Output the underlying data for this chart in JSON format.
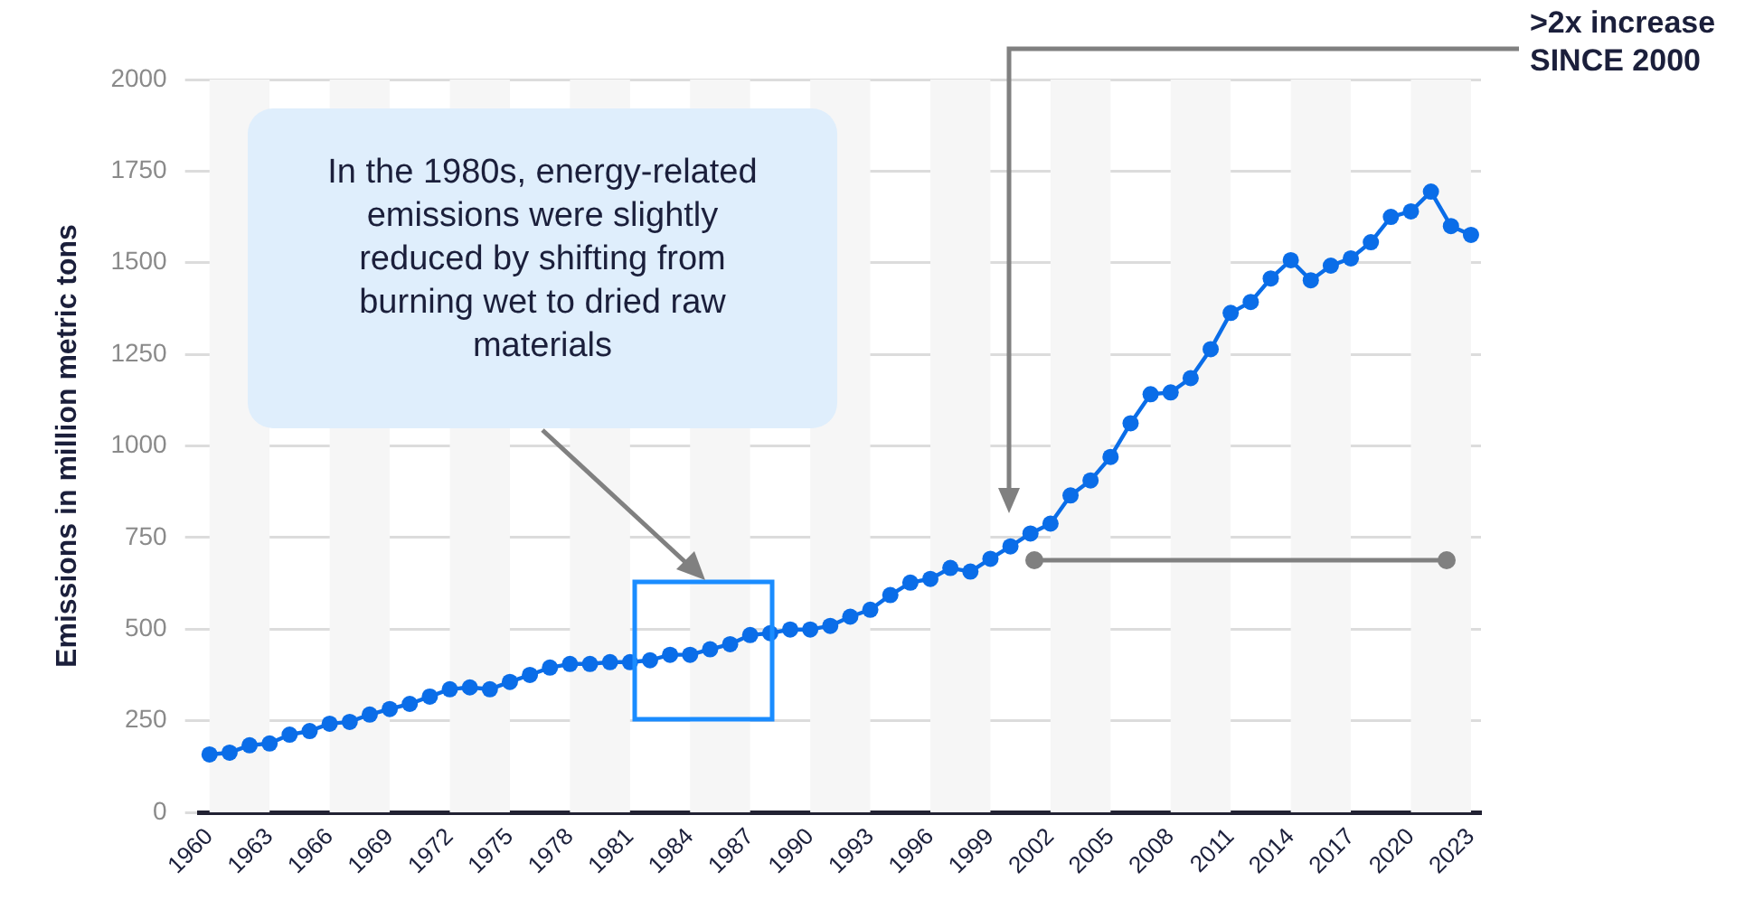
{
  "chart_data": {
    "type": "line",
    "ylabel": "Emissions in million metric tons",
    "x": [
      1960,
      1961,
      1962,
      1963,
      1964,
      1965,
      1966,
      1967,
      1968,
      1969,
      1970,
      1971,
      1972,
      1973,
      1974,
      1975,
      1976,
      1977,
      1978,
      1979,
      1980,
      1981,
      1982,
      1983,
      1984,
      1985,
      1986,
      1987,
      1988,
      1989,
      1990,
      1991,
      1992,
      1993,
      1994,
      1995,
      1996,
      1997,
      1998,
      1999,
      2000,
      2001,
      2002,
      2003,
      2004,
      2005,
      2006,
      2007,
      2008,
      2009,
      2010,
      2011,
      2012,
      2013,
      2014,
      2015,
      2016,
      2017,
      2018,
      2019,
      2020,
      2021,
      2022,
      2023
    ],
    "series": [
      {
        "color": "#0a6de8",
        "values": [
          158,
          163,
          183,
          188,
          212,
          222,
          242,
          247,
          267,
          282,
          296,
          316,
          336,
          341,
          336,
          356,
          375,
          395,
          405,
          405,
          410,
          410,
          415,
          430,
          430,
          445,
          459,
          484,
          489,
          499,
          499,
          509,
          534,
          553,
          593,
          627,
          637,
          667,
          657,
          692,
          726,
          761,
          788,
          865,
          906,
          970,
          1062,
          1141,
          1146,
          1185,
          1264,
          1363,
          1393,
          1457,
          1507,
          1452,
          1492,
          1512,
          1556,
          1625,
          1640,
          1694,
          1600,
          1576
        ]
      }
    ],
    "xlim": [
      1959.5,
      2023.5
    ],
    "xticks": [
      1960,
      1963,
      1966,
      1969,
      1972,
      1975,
      1978,
      1981,
      1984,
      1987,
      1990,
      1993,
      1996,
      1999,
      2002,
      2005,
      2008,
      2011,
      2014,
      2017,
      2020,
      2023
    ],
    "ylim": [
      0,
      2000
    ],
    "yticks": [
      0,
      250,
      500,
      750,
      1000,
      1250,
      1500,
      1750,
      2000
    ],
    "grid": "y",
    "marker": "circle",
    "line_style": "solid",
    "legend": false,
    "bands": [
      {
        "axis": "x",
        "from": 1960,
        "to": 1963,
        "color": "#f6f6f6"
      },
      {
        "axis": "x",
        "from": 1966,
        "to": 1969,
        "color": "#f6f6f6"
      },
      {
        "axis": "x",
        "from": 1972,
        "to": 1975,
        "color": "#f6f6f6"
      },
      {
        "axis": "x",
        "from": 1978,
        "to": 1981,
        "color": "#f6f6f6"
      },
      {
        "axis": "x",
        "from": 1984,
        "to": 1987,
        "color": "#f6f6f6"
      },
      {
        "axis": "x",
        "from": 1990,
        "to": 1993,
        "color": "#f6f6f6"
      },
      {
        "axis": "x",
        "from": 1996,
        "to": 1999,
        "color": "#f6f6f6"
      },
      {
        "axis": "x",
        "from": 2002,
        "to": 2005,
        "color": "#f6f6f6"
      },
      {
        "axis": "x",
        "from": 2008,
        "to": 2011,
        "color": "#f6f6f6"
      },
      {
        "axis": "x",
        "from": 2014,
        "to": 2017,
        "color": "#f6f6f6"
      },
      {
        "axis": "x",
        "from": 2020,
        "to": 2023,
        "color": "#f6f6f6"
      }
    ],
    "annotations": [
      "In the 1980s, energy-related emissions were slightly reduced by shifting from burning wet to dried raw materials",
      ">2x increase SINCE 2000"
    ]
  }
}
